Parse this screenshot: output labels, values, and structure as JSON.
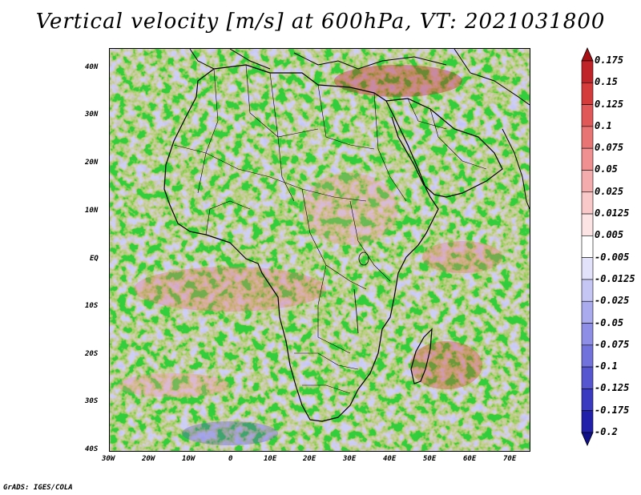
{
  "title": "Vertical velocity [m/s] at 600hPa, VT: 2021031800",
  "credit": "GrADS: IGES/COLA",
  "map": {
    "lat_labels": [
      "40N",
      "30N",
      "20N",
      "10N",
      "EQ",
      "10S",
      "20S",
      "30S",
      "40S"
    ],
    "lon_labels": [
      "30W",
      "20W",
      "10W",
      "0",
      "10E",
      "20E",
      "30E",
      "40E",
      "50E",
      "60E",
      "70E"
    ],
    "lat_range": [
      -40,
      45
    ],
    "lon_range": [
      -30,
      75
    ]
  },
  "colorbar": {
    "levels": [
      "0.175",
      "0.15",
      "0.125",
      "0.1",
      "0.075",
      "0.05",
      "0.025",
      "0.0125",
      "0.005",
      "-0.005",
      "-0.0125",
      "-0.025",
      "-0.05",
      "-0.075",
      "-0.1",
      "-0.125",
      "-0.175",
      "-0.2"
    ],
    "colors": [
      "#a80f14",
      "#c02428",
      "#d43c3c",
      "#e05858",
      "#e87474",
      "#f09090",
      "#f5acac",
      "#f9c8c8",
      "#fce4e4",
      "#ffffff",
      "#e2e2fa",
      "#c6c6f4",
      "#aaaaee",
      "#8e8ee6",
      "#7272dc",
      "#5656d0",
      "#3a3ac0",
      "#2020aa",
      "#10108a"
    ]
  }
}
